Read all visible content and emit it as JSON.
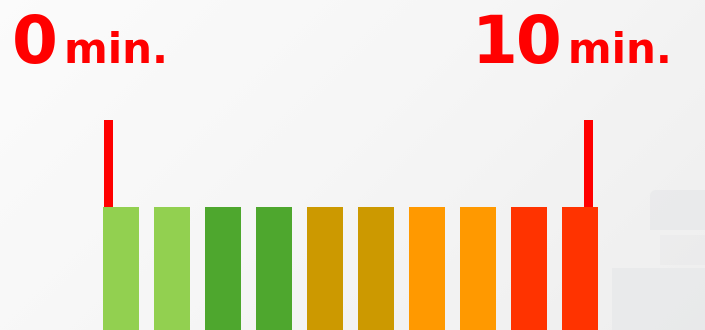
{
  "labels": {
    "start": {
      "number": "0",
      "unit": "min."
    },
    "end": {
      "number": "10",
      "unit": "min."
    }
  },
  "colors": {
    "label": "#ff0000",
    "marker": "#ff0000"
  },
  "segments": [
    {
      "color": "#92d050"
    },
    {
      "color": "#92d050"
    },
    {
      "color": "#4ea72e"
    },
    {
      "color": "#4ea72e"
    },
    {
      "color": "#cc9900"
    },
    {
      "color": "#cc9900"
    },
    {
      "color": "#ff9900"
    },
    {
      "color": "#ff9900"
    },
    {
      "color": "#ff3300"
    },
    {
      "color": "#ff3300"
    }
  ]
}
